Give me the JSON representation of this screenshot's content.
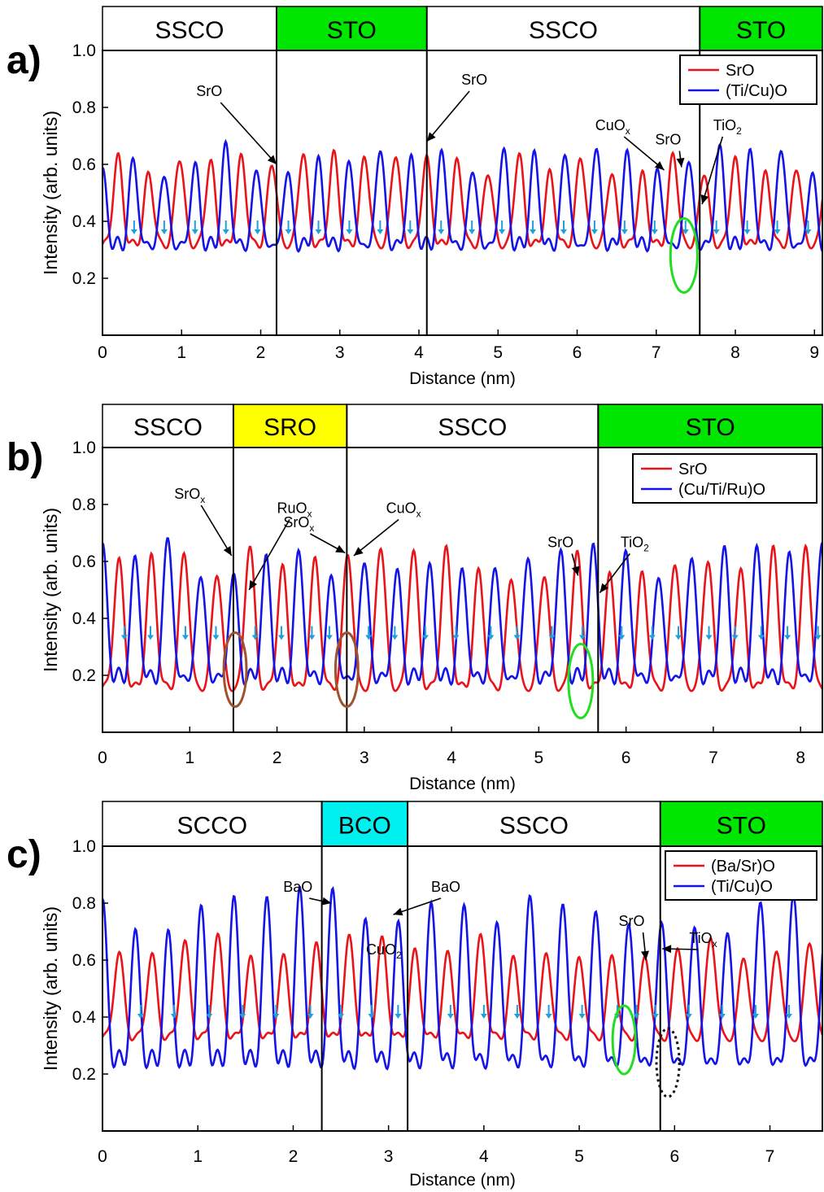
{
  "chart_data": [
    {
      "panel_label": "a)",
      "type": "line",
      "xlabel": "Distance (nm)",
      "ylabel": "Intensity (arb. units)",
      "xlim": [
        0,
        9.1
      ],
      "ylim": [
        0,
        1.0
      ],
      "xticks": [
        0,
        1,
        2,
        3,
        4,
        5,
        6,
        7,
        8,
        9
      ],
      "yticks": [
        0.2,
        0.4,
        0.6,
        0.8,
        1.0
      ],
      "grid": false,
      "legend_position": "top-right",
      "series": [
        {
          "name": "SrO",
          "color": "#e8141a",
          "phase": 0.5,
          "base": 0.32,
          "amp": 0.28
        },
        {
          "name": "(Ti/Cu)O",
          "color": "#1414e6",
          "phase": 0.0,
          "base": 0.28,
          "amp": 0.34
        }
      ],
      "peak_spacing_nm": 0.39,
      "layers": [
        {
          "label": "SSCO",
          "x0": 0,
          "x1": 2.2,
          "color": "#ffffff"
        },
        {
          "label": "STO",
          "x0": 2.2,
          "x1": 4.1,
          "color": "#00e600"
        },
        {
          "label": "SSCO",
          "x0": 4.1,
          "x1": 7.55,
          "color": "#ffffff"
        },
        {
          "label": "STO",
          "x0": 7.55,
          "x1": 9.1,
          "color": "#00e600"
        }
      ],
      "boundaries": [
        2.2,
        4.1,
        7.55
      ],
      "annotations": [
        {
          "label": "SrO",
          "sub": "",
          "x": 2.2,
          "y": 0.6,
          "tx": 1.35,
          "ty": 0.84
        },
        {
          "label": "SrO",
          "sub": "",
          "x": 4.1,
          "y": 0.68,
          "tx": 4.7,
          "ty": 0.88
        },
        {
          "label": "CuO",
          "sub": "x",
          "x": 7.1,
          "y": 0.58,
          "tx": 6.45,
          "ty": 0.72
        },
        {
          "label": "SrO",
          "sub": "",
          "x": 7.32,
          "y": 0.59,
          "tx": 7.15,
          "ty": 0.67
        },
        {
          "label": "TiO",
          "sub": "2",
          "x": 7.58,
          "y": 0.46,
          "tx": 7.9,
          "ty": 0.72
        }
      ],
      "circles": [
        {
          "x": 7.35,
          "y": 0.28,
          "rx": 0.17,
          "ry": 0.13,
          "color": "#22dd22",
          "dash": false
        }
      ],
      "arrows_at": [
        0.4,
        0.78,
        1.17,
        1.56,
        1.96,
        2.35,
        2.73,
        3.12,
        3.51,
        3.89,
        4.28,
        4.67,
        5.05,
        5.44,
        5.83,
        6.22,
        6.6,
        6.98,
        7.37,
        7.76,
        8.15,
        8.53,
        8.92
      ],
      "arrow_y": 0.38
    },
    {
      "panel_label": "b)",
      "type": "line",
      "xlabel": "Distance (nm)",
      "ylabel": "Intensity (arb. units)",
      "xlim": [
        0,
        8.25
      ],
      "ylim": [
        0,
        1.0
      ],
      "xticks": [
        0,
        1,
        2,
        3,
        4,
        5,
        6,
        7,
        8
      ],
      "yticks": [
        0.2,
        0.4,
        0.6,
        0.8,
        1.0
      ],
      "grid": false,
      "legend_position": "top-right",
      "series": [
        {
          "name": "SrO",
          "color": "#e8141a",
          "phase": 0.5,
          "base": 0.16,
          "amp": 0.44
        },
        {
          "name": "(Cu/Ti/Ru)O",
          "color": "#1414e6",
          "phase": 0.0,
          "base": 0.14,
          "amp": 0.48
        }
      ],
      "peak_spacing_nm": 0.375,
      "layers": [
        {
          "label": "SSCO",
          "x0": 0,
          "x1": 1.5,
          "color": "#ffffff"
        },
        {
          "label": "SRO",
          "x0": 1.5,
          "x1": 2.8,
          "color": "#ffff00"
        },
        {
          "label": "SSCO",
          "x0": 2.8,
          "x1": 5.68,
          "color": "#ffffff"
        },
        {
          "label": "STO",
          "x0": 5.68,
          "x1": 8.25,
          "color": "#00e600"
        }
      ],
      "boundaries": [
        1.5,
        2.8,
        5.68
      ],
      "annotations": [
        {
          "label": "SrO",
          "sub": "x",
          "x": 1.48,
          "y": 0.62,
          "tx": 1.0,
          "ty": 0.82
        },
        {
          "label": "RuO",
          "sub": "x",
          "x": 1.68,
          "y": 0.5,
          "tx": 2.2,
          "ty": 0.77
        },
        {
          "label": "SrO",
          "sub": "x",
          "x": 2.78,
          "y": 0.63,
          "tx": 2.25,
          "ty": 0.72
        },
        {
          "label": "CuO",
          "sub": "x",
          "x": 2.88,
          "y": 0.62,
          "tx": 3.45,
          "ty": 0.77
        },
        {
          "label": "SrO",
          "sub": "",
          "x": 5.45,
          "y": 0.55,
          "tx": 5.25,
          "ty": 0.65
        },
        {
          "label": "TiO",
          "sub": "2",
          "x": 5.7,
          "y": 0.49,
          "tx": 6.1,
          "ty": 0.65
        }
      ],
      "circles": [
        {
          "x": 1.52,
          "y": 0.22,
          "rx": 0.13,
          "ry": 0.13,
          "color": "#a0522d",
          "dash": false
        },
        {
          "x": 2.8,
          "y": 0.22,
          "rx": 0.13,
          "ry": 0.13,
          "color": "#a0522d",
          "dash": false
        },
        {
          "x": 5.48,
          "y": 0.18,
          "rx": 0.14,
          "ry": 0.13,
          "color": "#22dd22",
          "dash": false
        }
      ],
      "arrows_at": [
        0.25,
        0.55,
        0.95,
        1.3,
        1.75,
        2.05,
        2.4,
        2.6,
        3.05,
        3.35,
        3.7,
        4.05,
        4.45,
        4.75,
        5.15,
        5.5,
        5.95,
        6.3,
        6.6,
        6.95,
        7.25,
        7.55,
        7.85,
        8.2
      ],
      "arrow_y": 0.35
    },
    {
      "panel_label": "c)",
      "type": "line",
      "xlabel": "Distance (nm)",
      "ylabel": "Intensity (arb. units)",
      "xlim": [
        0,
        7.55
      ],
      "ylim": [
        0,
        1.0
      ],
      "xticks": [
        0,
        1,
        2,
        3,
        4,
        5,
        6,
        7
      ],
      "yticks": [
        0.2,
        0.4,
        0.6,
        0.8,
        1.0
      ],
      "grid": false,
      "legend_position": "top-right",
      "series": [
        {
          "name": "(Ba/Sr)O",
          "color": "#e8141a",
          "phase": 0.5,
          "base": 0.33,
          "amp": 0.31
        },
        {
          "name": "(Ti/Cu)O",
          "color": "#1414e6",
          "phase": 0.0,
          "base": 0.18,
          "amp": 0.6
        }
      ],
      "peak_spacing_nm": 0.345,
      "layers": [
        {
          "label": "SCCO",
          "x0": 0,
          "x1": 2.3,
          "color": "#ffffff"
        },
        {
          "label": "BCO",
          "x0": 2.3,
          "x1": 3.2,
          "color": "#00f0f0"
        },
        {
          "label": "SSCO",
          "x0": 3.2,
          "x1": 5.85,
          "color": "#ffffff"
        },
        {
          "label": "STO",
          "x0": 5.85,
          "x1": 7.55,
          "color": "#00e600"
        }
      ],
      "boundaries": [
        2.3,
        3.2,
        5.85
      ],
      "annotations": [
        {
          "label": "BaO",
          "sub": "",
          "x": 2.4,
          "y": 0.8,
          "tx": 2.05,
          "ty": 0.84
        },
        {
          "label": "BaO",
          "sub": "",
          "x": 3.05,
          "y": 0.76,
          "tx": 3.6,
          "ty": 0.84
        },
        {
          "label": "CuO",
          "sub": "2",
          "x": null,
          "y": null,
          "tx": 2.95,
          "ty": 0.62
        },
        {
          "label": "SrO",
          "sub": "",
          "x": 5.7,
          "y": 0.6,
          "tx": 5.55,
          "ty": 0.72
        },
        {
          "label": "TiO",
          "sub": "x",
          "x": 5.87,
          "y": 0.64,
          "tx": 6.3,
          "ty": 0.66
        }
      ],
      "circles": [
        {
          "x": 5.47,
          "y": 0.32,
          "rx": 0.12,
          "ry": 0.12,
          "color": "#22dd22",
          "dash": false
        },
        {
          "x": 5.93,
          "y": 0.24,
          "rx": 0.12,
          "ry": 0.12,
          "color": "#111111",
          "dash": true
        }
      ],
      "arrows_at": [
        0.4,
        0.75,
        1.12,
        1.47,
        1.82,
        2.18,
        2.5,
        2.82,
        3.1,
        3.65,
        4.0,
        4.35,
        4.68,
        5.03,
        5.4,
        5.6,
        5.8,
        6.15,
        6.5,
        6.85,
        7.2,
        7.52
      ],
      "arrow_y": 0.42
    }
  ]
}
